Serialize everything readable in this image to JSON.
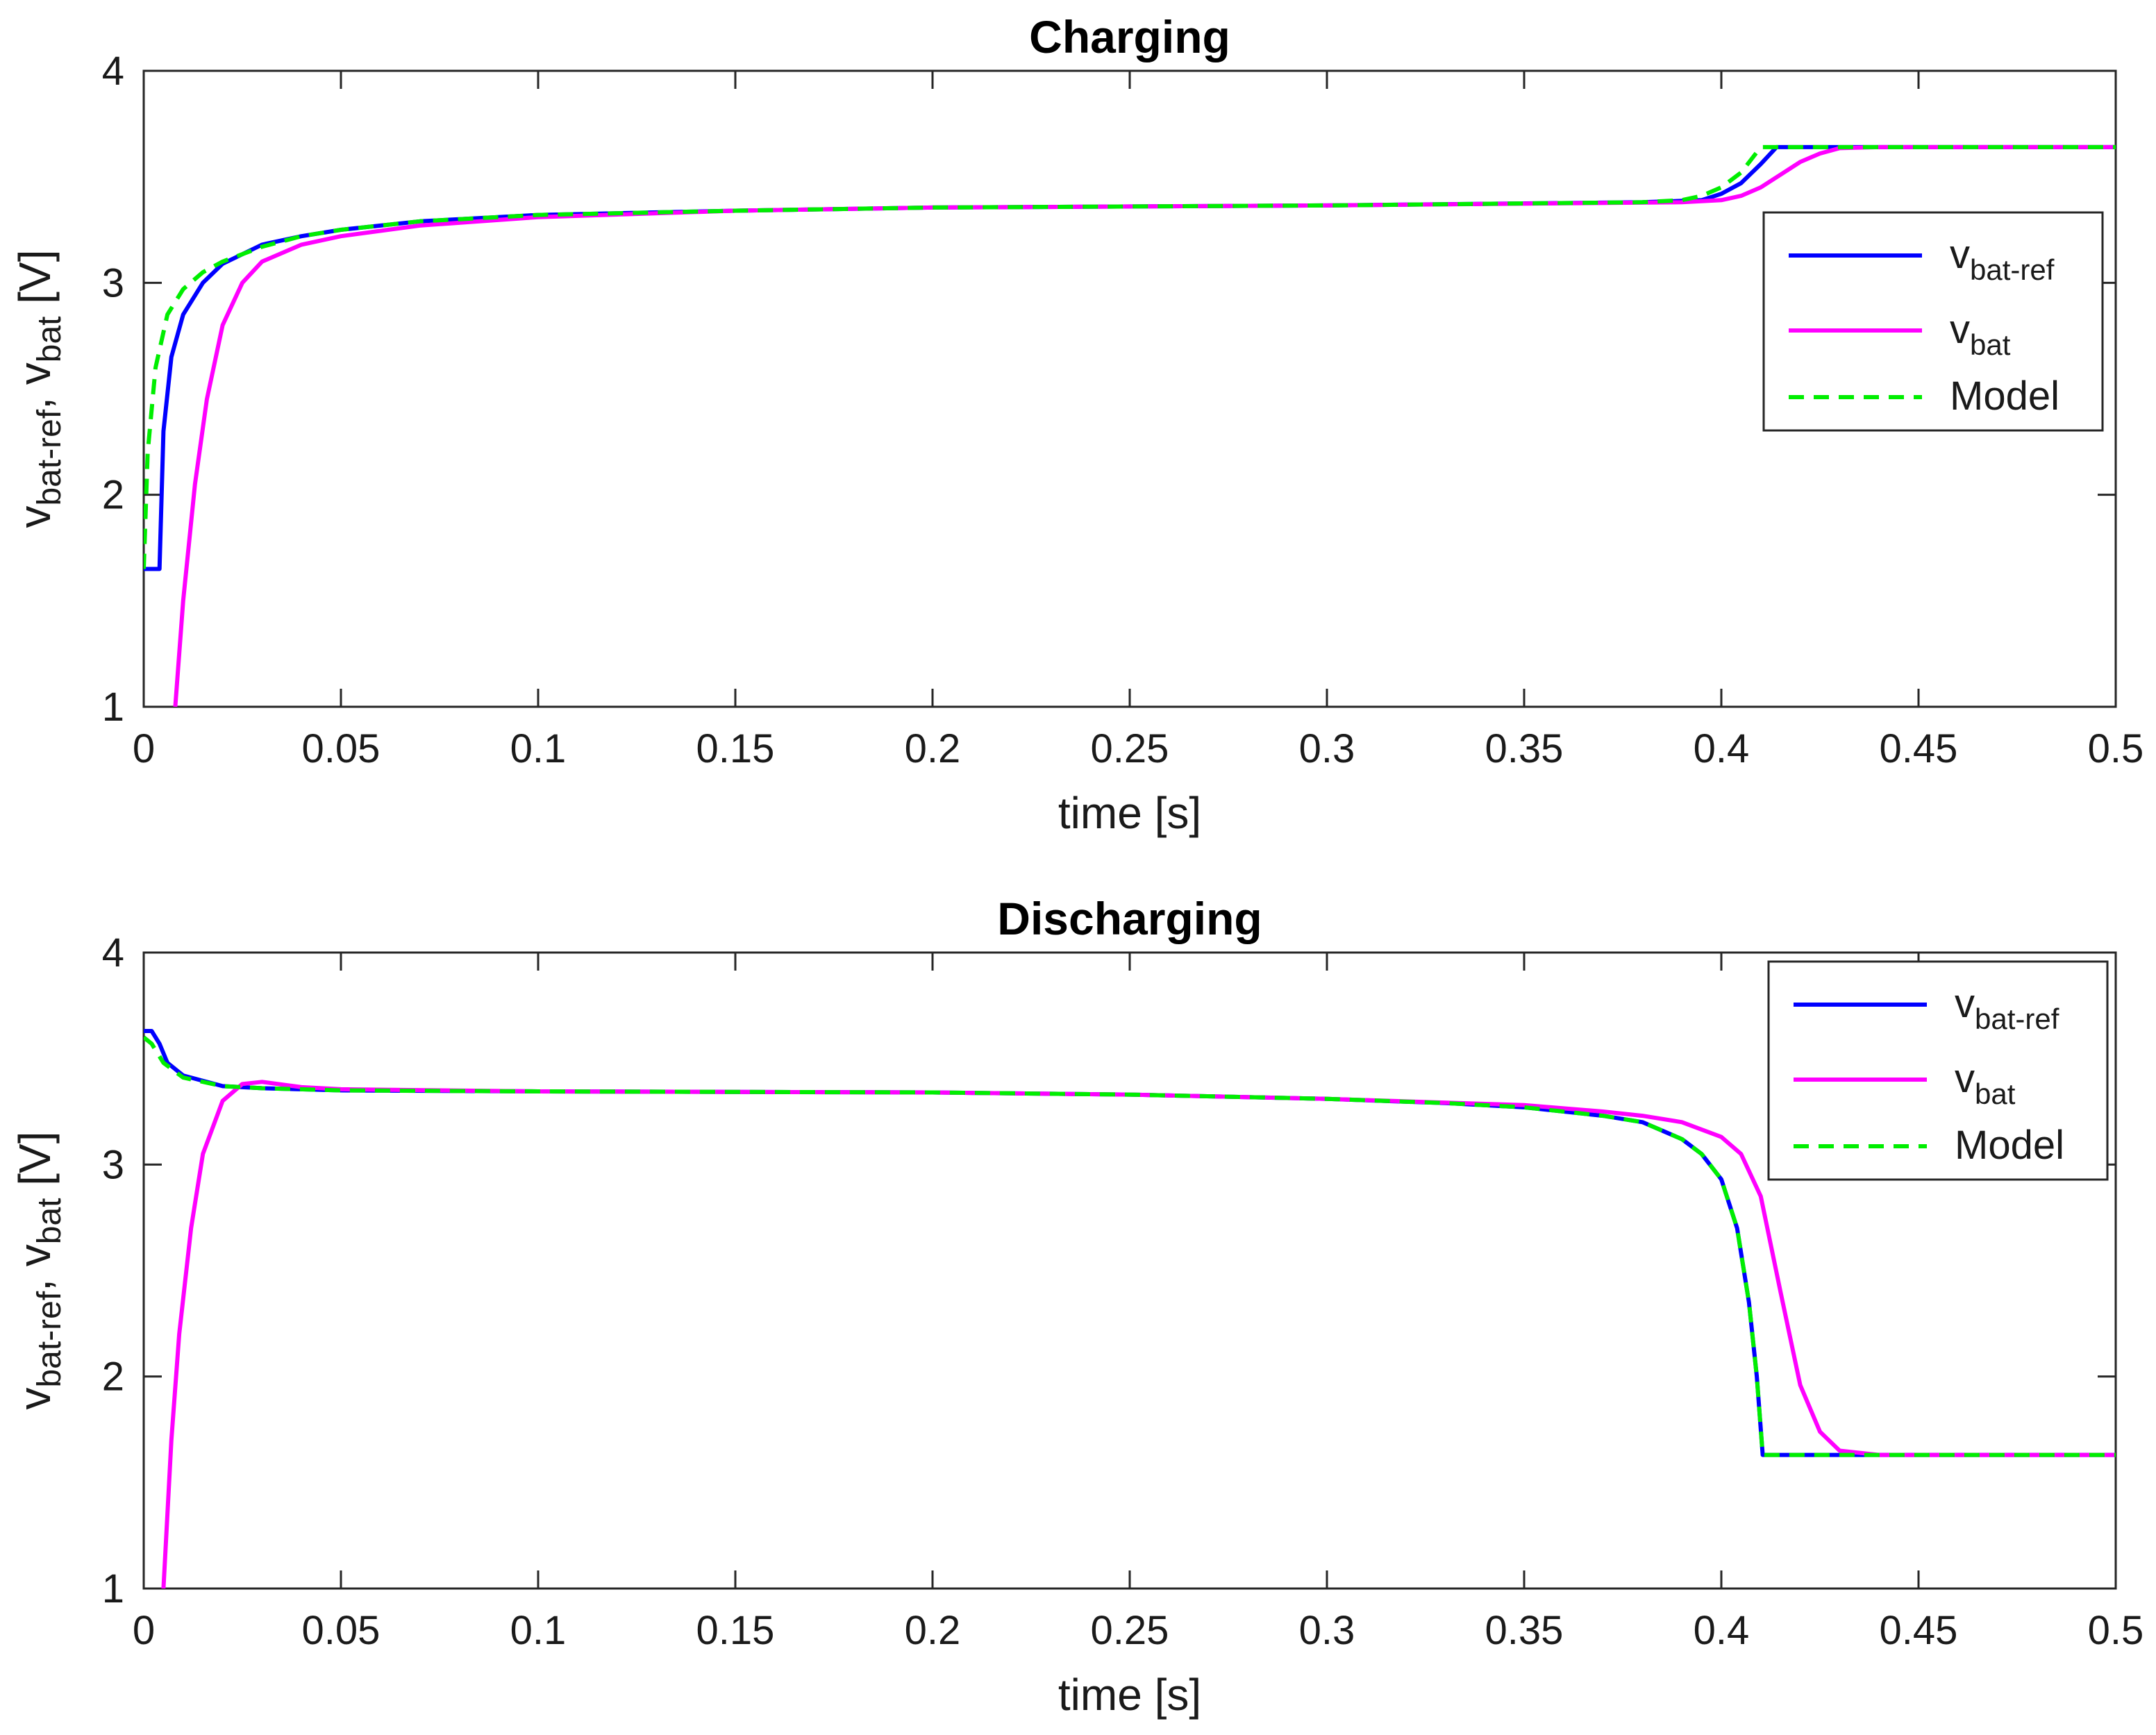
{
  "chart_data": [
    {
      "type": "line",
      "title": "Charging",
      "xlabel": "time [s]",
      "ylabel_parts": [
        "v",
        "bat-ref",
        ", v",
        "bat",
        " [V]"
      ],
      "xlim": [
        0,
        0.5
      ],
      "ylim": [
        1,
        4
      ],
      "xticks": [
        0,
        0.05,
        0.1,
        0.15,
        0.2,
        0.25,
        0.3,
        0.35,
        0.4,
        0.45,
        0.5
      ],
      "xtick_labels": [
        "0",
        "0.05",
        "0.1",
        "0.15",
        "0.2",
        "0.25",
        "0.3",
        "0.35",
        "0.4",
        "0.45",
        "0.5"
      ],
      "yticks": [
        1,
        2,
        3,
        4
      ],
      "ytick_labels": [
        "1",
        "2",
        "3",
        "4"
      ],
      "grid": false,
      "legend_position": "top-right",
      "series": [
        {
          "legend_main": "v",
          "legend_sub": "bat-ref",
          "color": "#0000ff",
          "dash": false,
          "points": [
            [
              0,
              1.65
            ],
            [
              0.004,
              1.65
            ],
            [
              0.005,
              2.3
            ],
            [
              0.007,
              2.65
            ],
            [
              0.01,
              2.85
            ],
            [
              0.015,
              3.0
            ],
            [
              0.02,
              3.09
            ],
            [
              0.03,
              3.18
            ],
            [
              0.04,
              3.22
            ],
            [
              0.05,
              3.25
            ],
            [
              0.07,
              3.29
            ],
            [
              0.1,
              3.32
            ],
            [
              0.15,
              3.34
            ],
            [
              0.2,
              3.355
            ],
            [
              0.3,
              3.365
            ],
            [
              0.38,
              3.38
            ],
            [
              0.395,
              3.39
            ],
            [
              0.4,
              3.42
            ],
            [
              0.405,
              3.47
            ],
            [
              0.41,
              3.56
            ],
            [
              0.414,
              3.64
            ],
            [
              0.5,
              3.64
            ]
          ]
        },
        {
          "legend_main": "v",
          "legend_sub": "bat",
          "color": "#ff00ff",
          "dash": false,
          "points": [
            [
              0.008,
              1.0
            ],
            [
              0.01,
              1.5
            ],
            [
              0.013,
              2.05
            ],
            [
              0.016,
              2.45
            ],
            [
              0.02,
              2.8
            ],
            [
              0.025,
              3.0
            ],
            [
              0.03,
              3.1
            ],
            [
              0.04,
              3.18
            ],
            [
              0.05,
              3.22
            ],
            [
              0.07,
              3.27
            ],
            [
              0.1,
              3.31
            ],
            [
              0.15,
              3.34
            ],
            [
              0.2,
              3.355
            ],
            [
              0.3,
              3.365
            ],
            [
              0.39,
              3.38
            ],
            [
              0.4,
              3.39
            ],
            [
              0.405,
              3.41
            ],
            [
              0.41,
              3.45
            ],
            [
              0.415,
              3.51
            ],
            [
              0.42,
              3.57
            ],
            [
              0.425,
              3.61
            ],
            [
              0.43,
              3.635
            ],
            [
              0.44,
              3.64
            ],
            [
              0.5,
              3.64
            ]
          ]
        },
        {
          "legend_main": "Model",
          "legend_sub": "",
          "color": "#00ee00",
          "dash": true,
          "points": [
            [
              0,
              1.65
            ],
            [
              0.001,
              2.2
            ],
            [
              0.003,
              2.6
            ],
            [
              0.006,
              2.85
            ],
            [
              0.01,
              2.97
            ],
            [
              0.015,
              3.05
            ],
            [
              0.02,
              3.1
            ],
            [
              0.03,
              3.17
            ],
            [
              0.04,
              3.22
            ],
            [
              0.05,
              3.25
            ],
            [
              0.07,
              3.29
            ],
            [
              0.1,
              3.32
            ],
            [
              0.15,
              3.34
            ],
            [
              0.2,
              3.355
            ],
            [
              0.3,
              3.365
            ],
            [
              0.38,
              3.38
            ],
            [
              0.39,
              3.39
            ],
            [
              0.395,
              3.41
            ],
            [
              0.4,
              3.45
            ],
            [
              0.405,
              3.52
            ],
            [
              0.41,
              3.64
            ],
            [
              0.5,
              3.64
            ]
          ]
        }
      ]
    },
    {
      "type": "line",
      "title": "Discharging",
      "xlabel": "time [s]",
      "ylabel_parts": [
        "v",
        "bat-ref",
        ", v",
        "bat",
        " [V]"
      ],
      "xlim": [
        0,
        0.5
      ],
      "ylim": [
        1,
        4
      ],
      "xticks": [
        0,
        0.05,
        0.1,
        0.15,
        0.2,
        0.25,
        0.3,
        0.35,
        0.4,
        0.45,
        0.5
      ],
      "xtick_labels": [
        "0",
        "0.05",
        "0.1",
        "0.15",
        "0.2",
        "0.25",
        "0.3",
        "0.35",
        "0.4",
        "0.45",
        "0.5"
      ],
      "yticks": [
        1,
        2,
        3,
        4
      ],
      "ytick_labels": [
        "1",
        "2",
        "3",
        "4"
      ],
      "grid": false,
      "legend_position": "top-right",
      "series": [
        {
          "legend_main": "v",
          "legend_sub": "bat-ref",
          "color": "#0000ff",
          "dash": false,
          "points": [
            [
              0,
              3.63
            ],
            [
              0.002,
              3.63
            ],
            [
              0.004,
              3.57
            ],
            [
              0.006,
              3.48
            ],
            [
              0.01,
              3.42
            ],
            [
              0.02,
              3.37
            ],
            [
              0.03,
              3.36
            ],
            [
              0.05,
              3.35
            ],
            [
              0.1,
              3.345
            ],
            [
              0.2,
              3.34
            ],
            [
              0.25,
              3.33
            ],
            [
              0.3,
              3.31
            ],
            [
              0.33,
              3.29
            ],
            [
              0.35,
              3.27
            ],
            [
              0.37,
              3.23
            ],
            [
              0.38,
              3.2
            ],
            [
              0.39,
              3.12
            ],
            [
              0.395,
              3.05
            ],
            [
              0.4,
              2.93
            ],
            [
              0.404,
              2.7
            ],
            [
              0.407,
              2.35
            ],
            [
              0.409,
              2.0
            ],
            [
              0.4105,
              1.63
            ],
            [
              0.5,
              1.63
            ]
          ]
        },
        {
          "legend_main": "v",
          "legend_sub": "bat",
          "color": "#ff00ff",
          "dash": false,
          "points": [
            [
              0.005,
              1.0
            ],
            [
              0.007,
              1.7
            ],
            [
              0.009,
              2.2
            ],
            [
              0.012,
              2.7
            ],
            [
              0.015,
              3.05
            ],
            [
              0.02,
              3.3
            ],
            [
              0.025,
              3.38
            ],
            [
              0.03,
              3.39
            ],
            [
              0.04,
              3.365
            ],
            [
              0.05,
              3.355
            ],
            [
              0.1,
              3.345
            ],
            [
              0.2,
              3.34
            ],
            [
              0.25,
              3.33
            ],
            [
              0.3,
              3.31
            ],
            [
              0.35,
              3.28
            ],
            [
              0.37,
              3.25
            ],
            [
              0.38,
              3.23
            ],
            [
              0.39,
              3.2
            ],
            [
              0.4,
              3.13
            ],
            [
              0.405,
              3.05
            ],
            [
              0.41,
              2.85
            ],
            [
              0.415,
              2.4
            ],
            [
              0.42,
              1.96
            ],
            [
              0.425,
              1.74
            ],
            [
              0.43,
              1.65
            ],
            [
              0.44,
              1.63
            ],
            [
              0.5,
              1.63
            ]
          ]
        },
        {
          "legend_main": "Model",
          "legend_sub": "",
          "color": "#00ee00",
          "dash": true,
          "points": [
            [
              0,
              3.6
            ],
            [
              0.002,
              3.57
            ],
            [
              0.005,
              3.48
            ],
            [
              0.01,
              3.41
            ],
            [
              0.02,
              3.37
            ],
            [
              0.03,
              3.36
            ],
            [
              0.05,
              3.35
            ],
            [
              0.1,
              3.345
            ],
            [
              0.2,
              3.34
            ],
            [
              0.25,
              3.33
            ],
            [
              0.3,
              3.31
            ],
            [
              0.33,
              3.29
            ],
            [
              0.35,
              3.27
            ],
            [
              0.37,
              3.23
            ],
            [
              0.38,
              3.2
            ],
            [
              0.39,
              3.12
            ],
            [
              0.395,
              3.05
            ],
            [
              0.4,
              2.93
            ],
            [
              0.404,
              2.7
            ],
            [
              0.407,
              2.35
            ],
            [
              0.409,
              2.0
            ],
            [
              0.4105,
              1.63
            ],
            [
              0.5,
              1.63
            ]
          ]
        }
      ]
    }
  ]
}
